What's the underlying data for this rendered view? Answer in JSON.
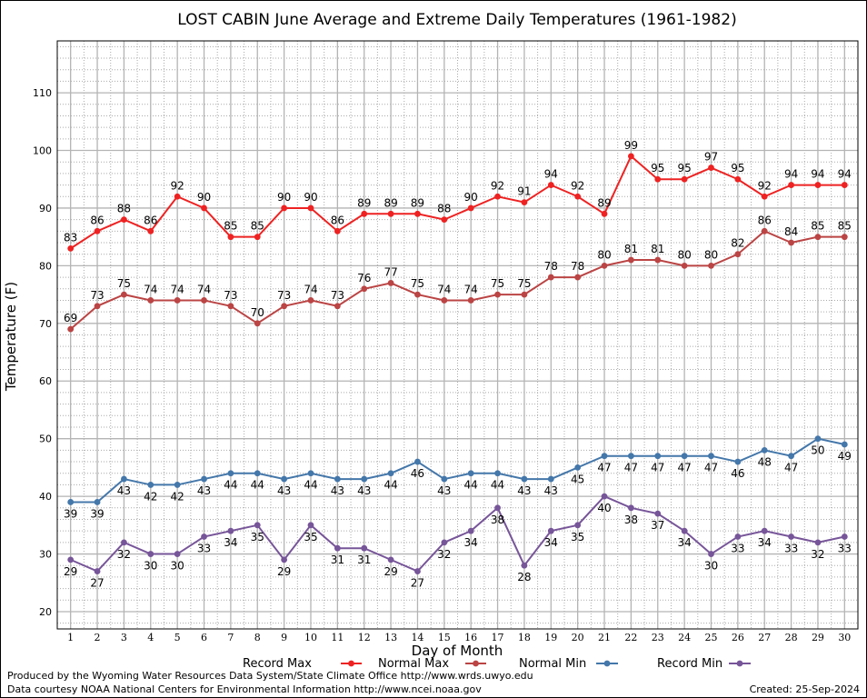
{
  "chart_data": {
    "type": "line",
    "title": "LOST CABIN June Average and Extreme Daily Temperatures (1961-1982)",
    "xlabel": "Day of Month",
    "ylabel": "Temperature (F)",
    "x": [
      1,
      2,
      3,
      4,
      5,
      6,
      7,
      8,
      9,
      10,
      11,
      12,
      13,
      14,
      15,
      16,
      17,
      18,
      19,
      20,
      21,
      22,
      23,
      24,
      25,
      26,
      27,
      28,
      29,
      30
    ],
    "ylim": [
      17,
      119
    ],
    "yticks": [
      20,
      30,
      40,
      50,
      60,
      70,
      80,
      90,
      100,
      110
    ],
    "grid": true,
    "legend_position": "bottom",
    "series": [
      {
        "name": "Record Max",
        "color": "#ee2222",
        "values": [
          83,
          86,
          88,
          86,
          92,
          90,
          85,
          85,
          90,
          90,
          86,
          89,
          89,
          89,
          88,
          90,
          92,
          91,
          94,
          92,
          89,
          99,
          95,
          95,
          97,
          95,
          92,
          94,
          94,
          94
        ]
      },
      {
        "name": "Normal Max",
        "color": "#bb4444",
        "values": [
          69,
          73,
          75,
          74,
          74,
          74,
          73,
          70,
          73,
          74,
          73,
          76,
          77,
          75,
          74,
          74,
          75,
          75,
          78,
          78,
          80,
          81,
          81,
          80,
          80,
          82,
          86,
          84,
          85,
          85
        ]
      },
      {
        "name": "Normal Min",
        "color": "#4477aa",
        "values": [
          39,
          39,
          43,
          42,
          42,
          43,
          44,
          44,
          43,
          44,
          43,
          43,
          44,
          46,
          43,
          44,
          44,
          43,
          43,
          45,
          47,
          47,
          47,
          47,
          47,
          46,
          48,
          47,
          50,
          49
        ]
      },
      {
        "name": "Record Min",
        "color": "#775599",
        "values": [
          29,
          27,
          32,
          30,
          30,
          33,
          34,
          35,
          29,
          35,
          31,
          31,
          29,
          27,
          32,
          34,
          38,
          28,
          34,
          35,
          40,
          38,
          37,
          34,
          30,
          33,
          34,
          33,
          32,
          33
        ]
      }
    ]
  },
  "footer": {
    "line1": "Produced by the Wyoming Water Resources Data System/State Climate Office http://www.wrds.uwyo.edu",
    "line2": "Data courtesy NOAA National Centers for Environmental Information http://www.ncei.noaa.gov",
    "created": "Created:  25-Sep-2024"
  }
}
